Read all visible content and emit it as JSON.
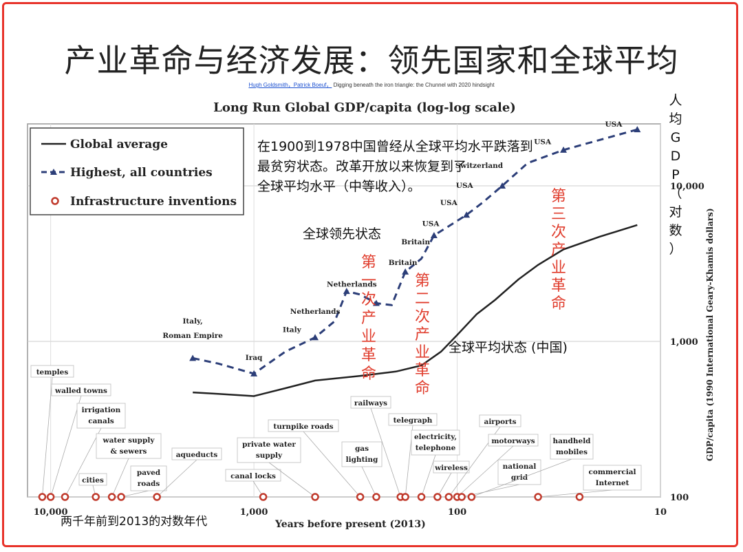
{
  "slide": {
    "title": "产业革命与经济发展：领先国家和全球平均",
    "citation_authors": "Hugh Goldsmith，Patrick Boeuf，",
    "citation_text": "Digging beneath the iron triangle: the Chunnel with 2020 hindsight"
  },
  "chart_data": {
    "type": "line",
    "title": "Long Run Global GDP/capita (log-log scale)",
    "xlabel": "Years before present (2013)",
    "xlabel_cn": "两千年前到2013的对数年代",
    "ylabel": "GDP/capita (1990 International Geary-Khamis dollars)",
    "ylabel_cn": "人均GDP（对数）",
    "x_scale": "log-reversed",
    "y_scale": "log",
    "xlim": [
      13000,
      10
    ],
    "ylim": [
      100,
      25000
    ],
    "x_ticks": [
      {
        "value": 10000,
        "label": "10,000"
      },
      {
        "value": 1000,
        "label": "1,000"
      },
      {
        "value": 100,
        "label": "100"
      },
      {
        "value": 10,
        "label": "10"
      }
    ],
    "y_ticks": [
      {
        "value": 10000,
        "label": "10,000"
      },
      {
        "value": 1000,
        "label": "1,000"
      },
      {
        "value": 100,
        "label": "100"
      }
    ],
    "grid": true,
    "legend_position": "top-left",
    "legend": [
      "Global average",
      "Highest, all countries",
      "Infrastructure inventions"
    ],
    "series": [
      {
        "name": "Global average",
        "style": "solid",
        "color": "#222222",
        "points": [
          [
            2000,
            470
          ],
          [
            1500,
            460
          ],
          [
            1000,
            445
          ],
          [
            700,
            500
          ],
          [
            500,
            560
          ],
          [
            300,
            600
          ],
          [
            200,
            640
          ],
          [
            150,
            700
          ],
          [
            120,
            860
          ],
          [
            100,
            1100
          ],
          [
            80,
            1500
          ],
          [
            65,
            1850
          ],
          [
            50,
            2500
          ],
          [
            40,
            3100
          ],
          [
            30,
            3900
          ],
          [
            20,
            4700
          ],
          [
            13,
            5600
          ]
        ]
      },
      {
        "name": "Highest, all countries",
        "style": "dashed",
        "color": "#2c3e78",
        "points": [
          [
            2000,
            780
          ],
          [
            1500,
            720
          ],
          [
            1000,
            620
          ],
          [
            700,
            860
          ],
          [
            500,
            1060
          ],
          [
            400,
            1350
          ],
          [
            350,
            2100
          ],
          [
            300,
            2000
          ],
          [
            250,
            1760
          ],
          [
            210,
            1710
          ],
          [
            180,
            2800
          ],
          [
            150,
            3400
          ],
          [
            130,
            4800
          ],
          [
            110,
            5500
          ],
          [
            90,
            6500
          ],
          [
            75,
            7800
          ],
          [
            60,
            10000
          ],
          [
            45,
            14000
          ],
          [
            30,
            17000
          ],
          [
            13,
            23000
          ]
        ]
      }
    ],
    "point_labels": [
      {
        "text": "Italy,",
        "x": 2000,
        "y": 1300
      },
      {
        "text": "Roman Empire",
        "x": 2000,
        "y": 1050
      },
      {
        "text": "Iraq",
        "x": 1000,
        "y": 760
      },
      {
        "text": "Italy",
        "x": 650,
        "y": 1150
      },
      {
        "text": "Netherlands",
        "x": 500,
        "y": 1500
      },
      {
        "text": "Netherlands",
        "x": 330,
        "y": 2250
      },
      {
        "text": "Britain",
        "x": 185,
        "y": 3100
      },
      {
        "text": "Britain",
        "x": 160,
        "y": 4200
      },
      {
        "text": "USA",
        "x": 135,
        "y": 5500
      },
      {
        "text": "USA",
        "x": 110,
        "y": 7500
      },
      {
        "text": "USA",
        "x": 92,
        "y": 9700
      },
      {
        "text": "Switzerland",
        "x": 78,
        "y": 13000
      },
      {
        "text": "USA",
        "x": 38,
        "y": 18500
      },
      {
        "text": "USA",
        "x": 17,
        "y": 24000
      }
    ],
    "inventions": [
      {
        "label": "temples",
        "x": 11000
      },
      {
        "label": "walled towns",
        "x": 10000
      },
      {
        "label": "irrigation canals",
        "x": 8500
      },
      {
        "label": "cities",
        "x": 6000
      },
      {
        "label": "water supply & sewers",
        "x": 5000
      },
      {
        "label": "paved roads",
        "x": 4500
      },
      {
        "label": "aqueducts",
        "x": 3000
      },
      {
        "label": "canal locks",
        "x": 900
      },
      {
        "label": "private water supply",
        "x": 500
      },
      {
        "label": "turnpike roads",
        "x": 300
      },
      {
        "label": "gas lighting",
        "x": 250
      },
      {
        "label": "railways",
        "x": 190
      },
      {
        "label": "telegraph",
        "x": 180
      },
      {
        "label": "electricity, telephone",
        "x": 150
      },
      {
        "label": "wireless",
        "x": 125
      },
      {
        "label": "airports",
        "x": 110
      },
      {
        "label": "motorways",
        "x": 100
      },
      {
        "label": "national grid",
        "x": 95
      },
      {
        "label": "handheld mobiles",
        "x": 85
      },
      {
        "label": "commercial Internet",
        "x": 40
      },
      {
        "label": "",
        "x": 25
      }
    ],
    "annotations": [
      {
        "text": "在1900到1978中国曾经从全球平均水平跌落到",
        "role": "note-line-1"
      },
      {
        "text": "最贫穷状态。改革开放以来恢复到了",
        "role": "note-line-2"
      },
      {
        "text": "全球平均水平（中等收入）。",
        "role": "note-line-3"
      },
      {
        "text": "全球领先状态",
        "role": "leading-label"
      },
      {
        "text": "全球平均状态 (中国)",
        "role": "average-label"
      },
      {
        "text": "第一次产业革命",
        "role": "revolution-1"
      },
      {
        "text": "第二次产业革命",
        "role": "revolution-2"
      },
      {
        "text": "第三次产业革命",
        "role": "revolution-3"
      }
    ]
  },
  "colors": {
    "frame": "#e8332a",
    "revolution_text": "#e03c2c",
    "invention_marker": "#c0392b",
    "highest_line": "#2c3e78"
  }
}
